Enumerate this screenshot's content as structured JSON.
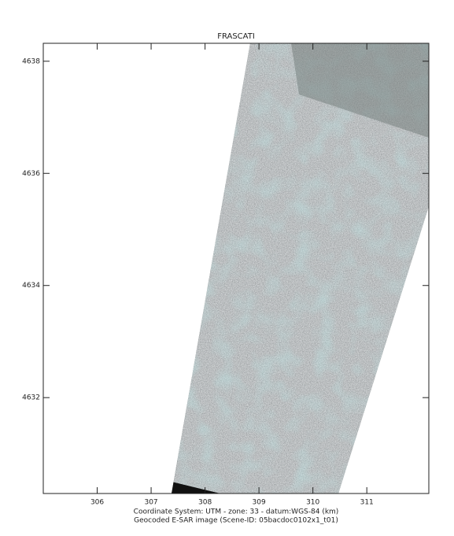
{
  "map": {
    "title": "FRASCATI",
    "xlim": [
      305.0,
      312.15
    ],
    "ylim": [
      4630.29,
      4638.32
    ],
    "xticks": [
      306,
      307,
      308,
      309,
      310,
      311
    ],
    "yticks": [
      4632,
      4634,
      4636,
      4638
    ],
    "caption": [
      "Coordinate System: UTM - zone: 33 - datum:WGS-84 (km)",
      "Geocoded E-SAR image (Scene-ID: 05bacdoc0102x1_t01)"
    ]
  }
}
